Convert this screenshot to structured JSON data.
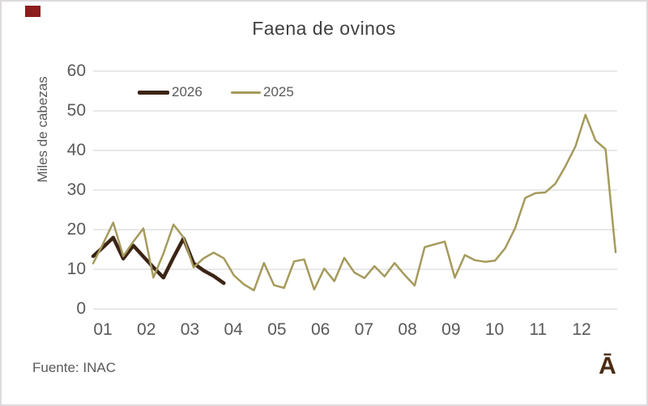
{
  "frame": {
    "background": "#ffffff",
    "border_color": "#dedade"
  },
  "decor": {
    "red_square_color": "#8e1d1d"
  },
  "chart_data": {
    "type": "line",
    "title": "Faena de ovinos",
    "ylabel": "Miles de cabezas",
    "source_note": "Fuente: INAC",
    "watermark": "Ā",
    "ylim": [
      0,
      60
    ],
    "yticks": [
      0,
      10,
      20,
      30,
      40,
      50,
      60
    ],
    "xtick_labels": [
      "01",
      "02",
      "03",
      "04",
      "05",
      "06",
      "07",
      "08",
      "09",
      "10",
      "11",
      "12"
    ],
    "x_description": "weekly observations, weeks 1-53 of the year, axis labeled by month",
    "grid": true,
    "legend_position": "top-left inside plot area",
    "colors": {
      "grid": "#d9d9d9",
      "tick_text": "#595959",
      "title_text": "#404040",
      "watermark_text": "#4a2b12"
    },
    "series": [
      {
        "name": "2026",
        "color": "#3c2414",
        "stroke_width": 4.5,
        "start_week": 1,
        "values": [
          13.3,
          15.6,
          18,
          12.7,
          16,
          13.2,
          10.5,
          7.9,
          13,
          17.8,
          11.5,
          9.7,
          8.3,
          6.5
        ]
      },
      {
        "name": "2025",
        "color": "#a59a5c",
        "stroke_width": 2.5,
        "start_week": 1,
        "values": [
          11.5,
          16.5,
          21.8,
          13.3,
          17,
          20.3,
          7.9,
          14,
          21.3,
          18,
          10.5,
          12.8,
          14.2,
          12.8,
          8.5,
          6.2,
          4.7,
          11.6,
          6,
          5.3,
          12,
          12.5,
          4.9,
          10.2,
          7,
          12.9,
          9.2,
          7.8,
          10.8,
          8.2,
          11.6,
          8.6,
          5.9,
          15.6,
          16.3,
          17,
          7.9,
          13.6,
          12.3,
          11.9,
          12.2,
          15.3,
          20.4,
          28,
          29.2,
          29.4,
          31.6,
          36,
          41,
          49,
          42.5,
          40.3,
          14.3
        ]
      }
    ]
  }
}
